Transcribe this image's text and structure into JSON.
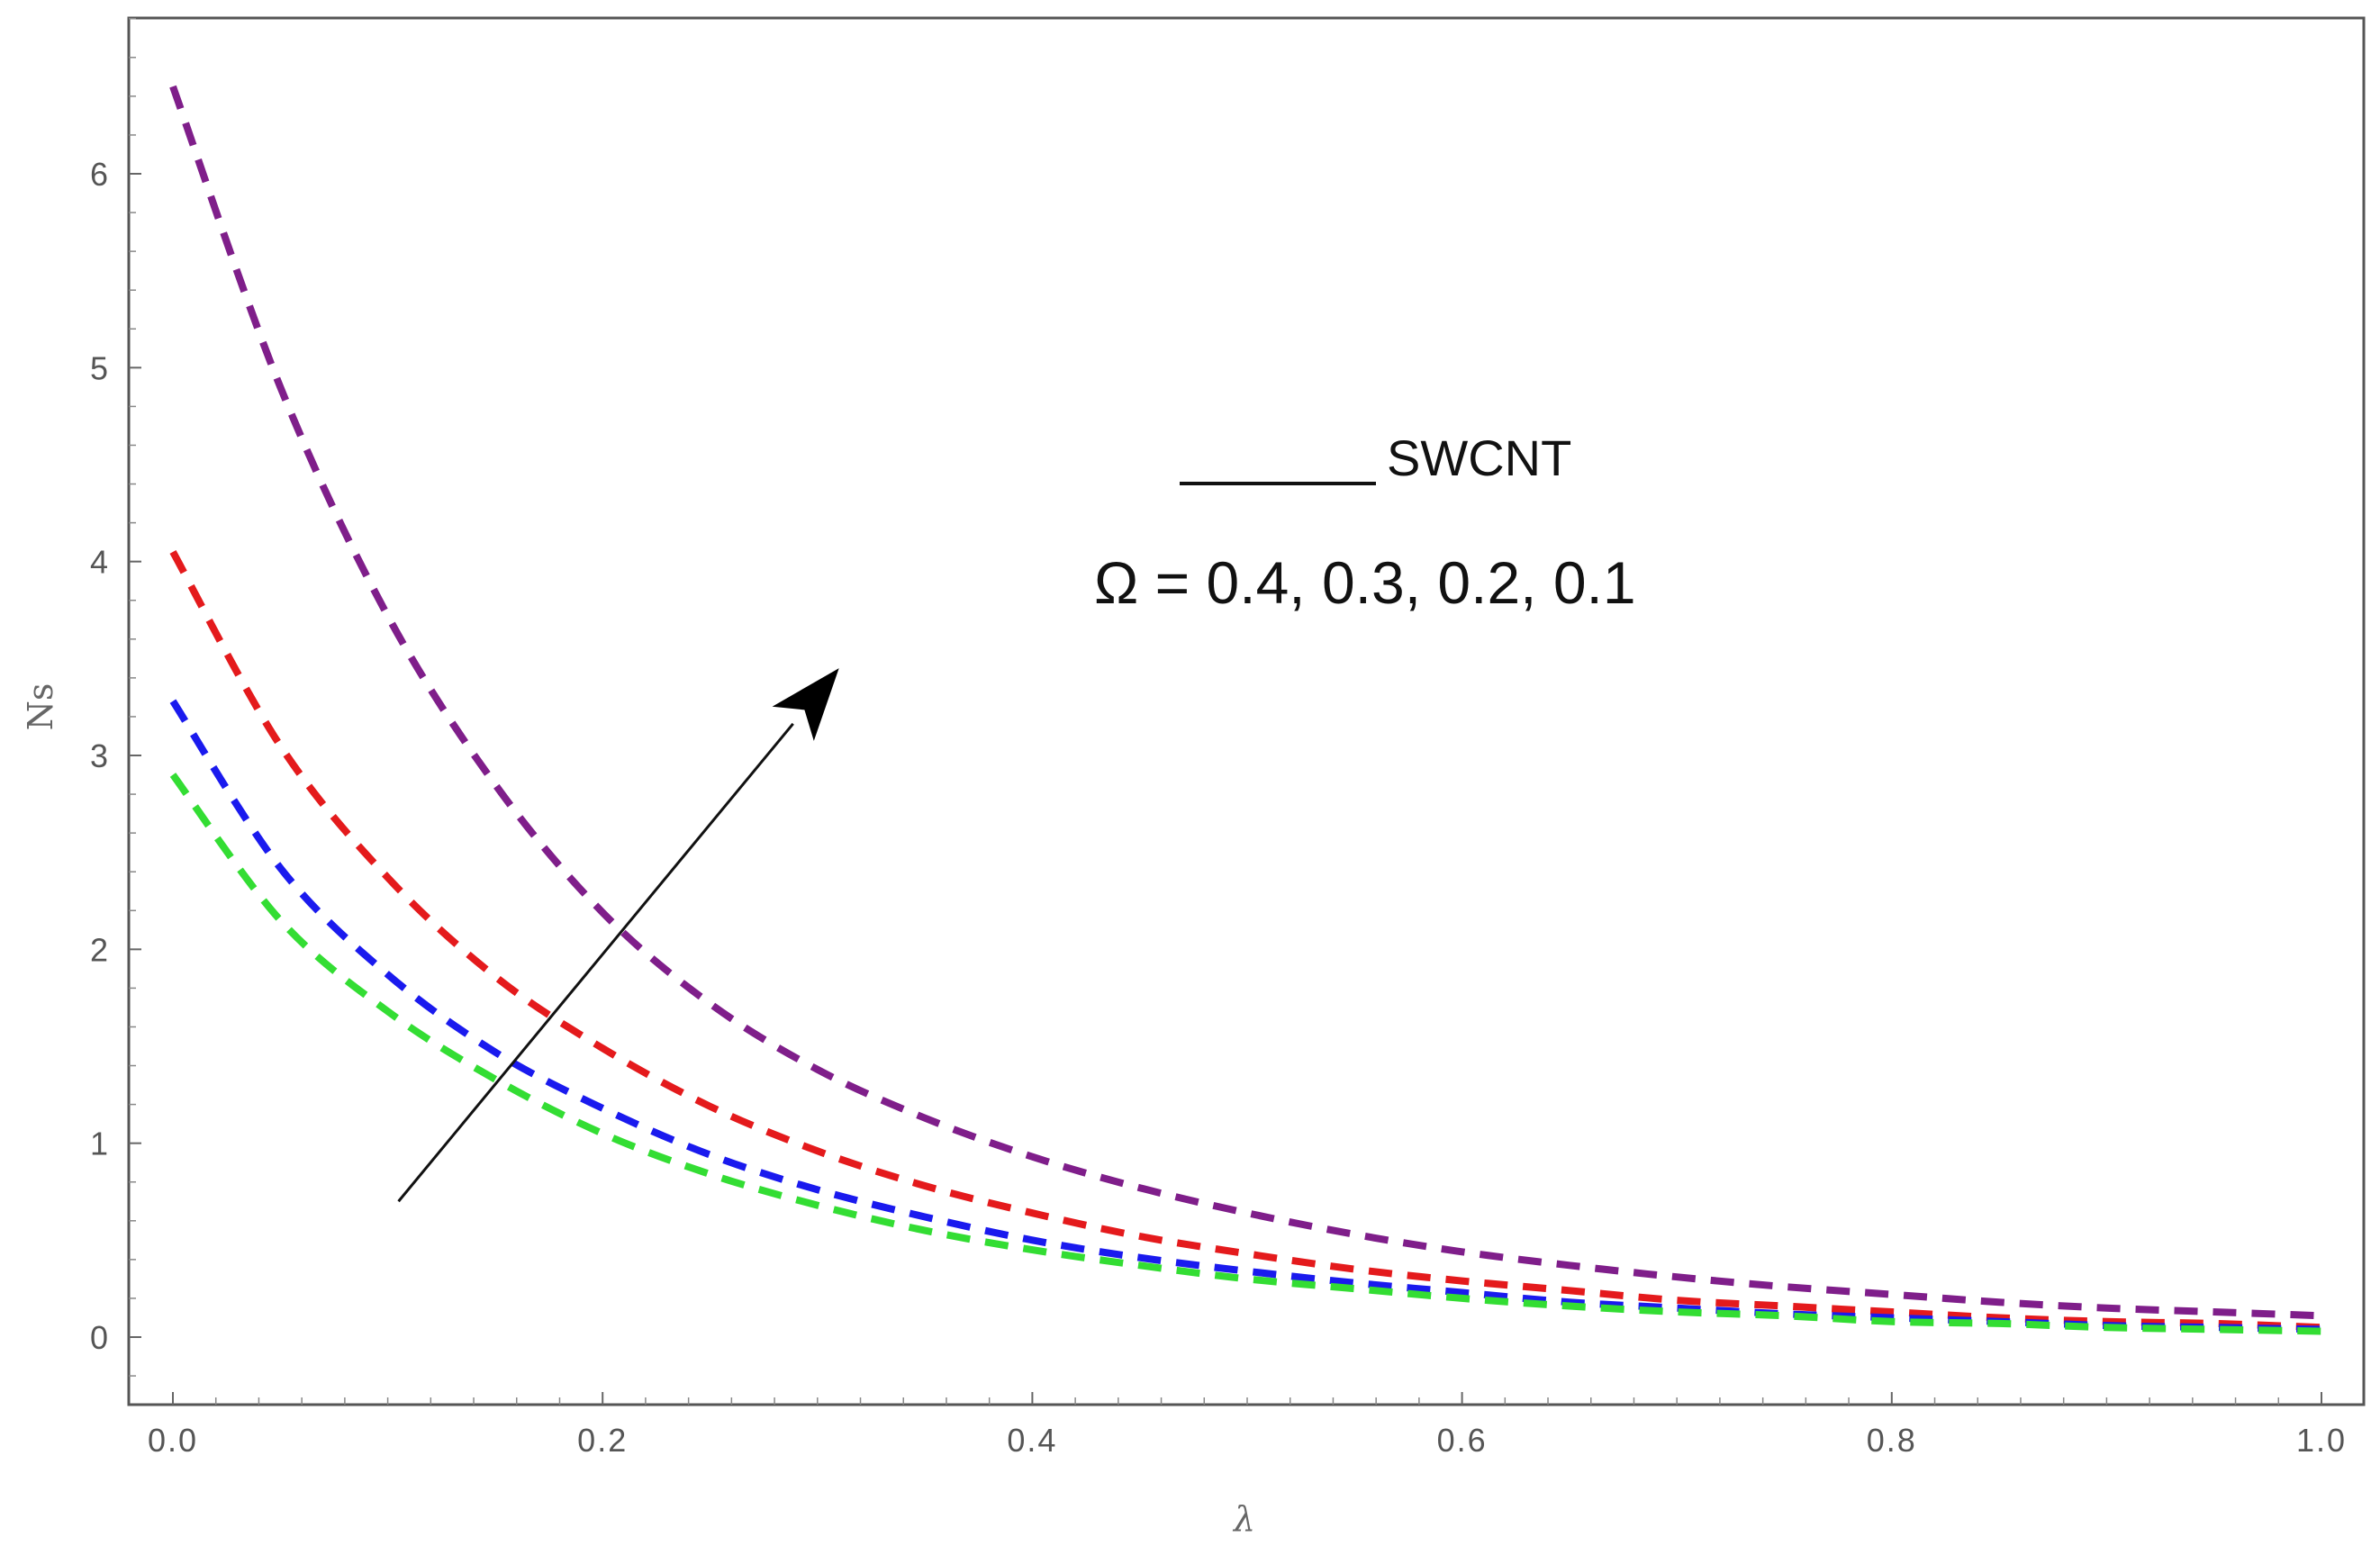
{
  "chart_data": {
    "type": "line",
    "xlabel": "λ",
    "ylabel": "Ns",
    "xlim": [
      0,
      1
    ],
    "ylim": [
      -0.3,
      6.8
    ],
    "xticks": [
      "0.0",
      "0.2",
      "0.4",
      "0.6",
      "0.8",
      "1.0"
    ],
    "yticks": [
      "0",
      "1",
      "2",
      "3",
      "4",
      "5",
      "6"
    ],
    "line_style": "dashed",
    "grid": false,
    "legend_text": "SWCNT",
    "annotation": "Ω = 0.4, 0.3, 0.2, 0.1",
    "arrow": {
      "from": [
        0.105,
        0.7
      ],
      "to": [
        0.31,
        3.45
      ]
    },
    "x": [
      0.0,
      0.05,
      0.1,
      0.15,
      0.2,
      0.25,
      0.3,
      0.35,
      0.4,
      0.45,
      0.5,
      0.55,
      0.6,
      0.65,
      0.7,
      0.75,
      0.8,
      0.85,
      0.9,
      0.95,
      1.0
    ],
    "series": [
      {
        "color": "#7f1e8a",
        "values": [
          6.45,
          4.9,
          3.72,
          2.85,
          2.19,
          1.72,
          1.38,
          1.13,
          0.93,
          0.77,
          0.64,
          0.53,
          0.44,
          0.37,
          0.31,
          0.26,
          0.22,
          0.18,
          0.15,
          0.13,
          0.11
        ]
      },
      {
        "color": "#e41a1c",
        "values": [
          4.05,
          3.05,
          2.37,
          1.86,
          1.49,
          1.19,
          0.96,
          0.78,
          0.64,
          0.52,
          0.43,
          0.35,
          0.29,
          0.24,
          0.19,
          0.16,
          0.13,
          0.1,
          0.08,
          0.07,
          0.05
        ]
      },
      {
        "color": "#1a1aee",
        "values": [
          3.28,
          2.42,
          1.87,
          1.47,
          1.18,
          0.94,
          0.76,
          0.62,
          0.5,
          0.41,
          0.34,
          0.28,
          0.23,
          0.18,
          0.15,
          0.12,
          0.1,
          0.08,
          0.06,
          0.05,
          0.04
        ]
      },
      {
        "color": "#33dd33",
        "values": [
          2.9,
          2.15,
          1.68,
          1.33,
          1.05,
          0.84,
          0.68,
          0.55,
          0.45,
          0.37,
          0.3,
          0.25,
          0.2,
          0.16,
          0.13,
          0.11,
          0.08,
          0.07,
          0.05,
          0.04,
          0.03
        ]
      }
    ]
  }
}
